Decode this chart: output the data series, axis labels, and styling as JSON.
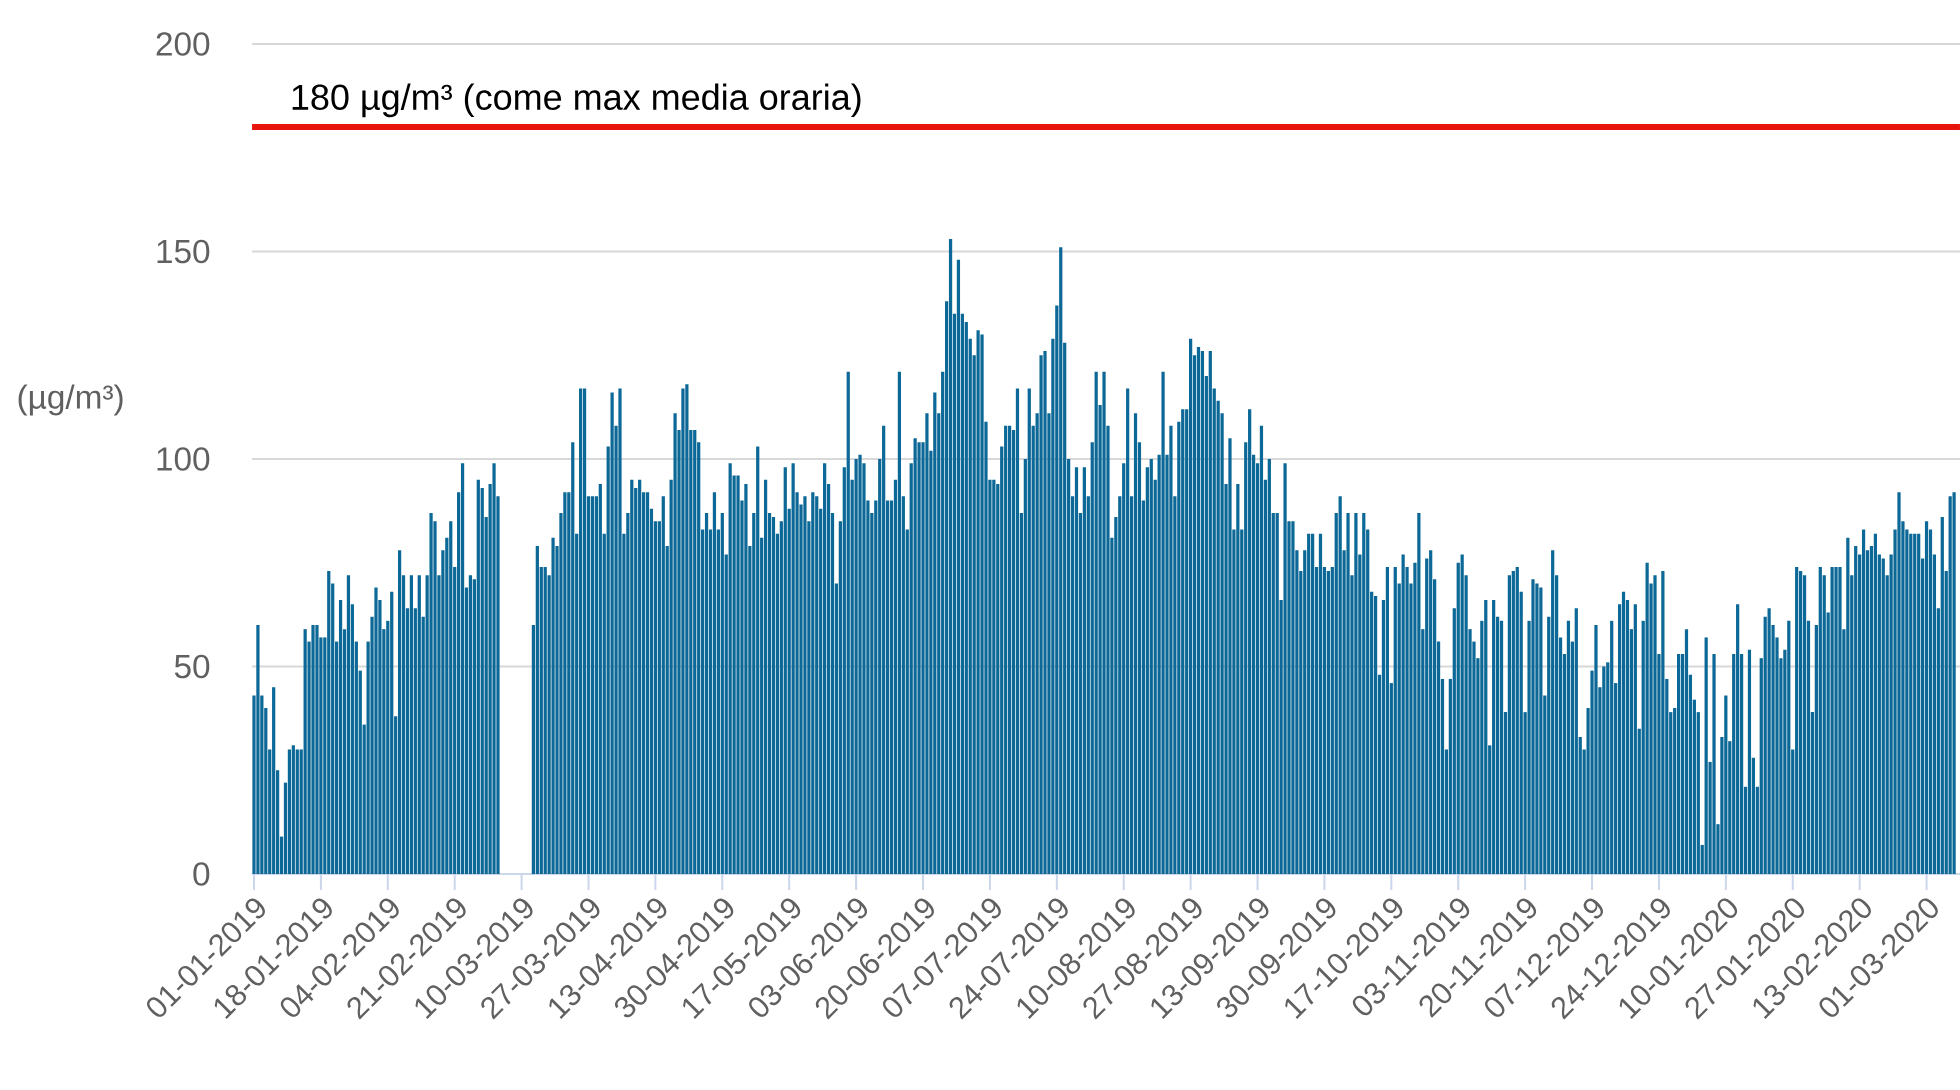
{
  "chart_data": {
    "type": "bar",
    "ylabel": "(µg/m³)",
    "color": "#0c6896",
    "grid": "y",
    "ylim": [
      0,
      200
    ],
    "yticks": [
      0,
      50,
      100,
      150,
      200
    ],
    "xlim": [
      "2018-12-31T12:00",
      "2020-03-09T12:00"
    ],
    "xticks": [
      {
        "value": "2019-01-01",
        "label": "01-01-2019"
      },
      {
        "value": "2019-01-18",
        "label": "18-01-2019"
      },
      {
        "value": "2019-02-04",
        "label": "04-02-2019"
      },
      {
        "value": "2019-02-21",
        "label": "21-02-2019"
      },
      {
        "value": "2019-03-10",
        "label": "10-03-2019"
      },
      {
        "value": "2019-03-27",
        "label": "27-03-2019"
      },
      {
        "value": "2019-04-13",
        "label": "13-04-2019"
      },
      {
        "value": "2019-04-30",
        "label": "30-04-2019"
      },
      {
        "value": "2019-05-17",
        "label": "17-05-2019"
      },
      {
        "value": "2019-06-03",
        "label": "03-06-2019"
      },
      {
        "value": "2019-06-20",
        "label": "20-06-2019"
      },
      {
        "value": "2019-07-07",
        "label": "07-07-2019"
      },
      {
        "value": "2019-07-24",
        "label": "24-07-2019"
      },
      {
        "value": "2019-08-10",
        "label": "10-08-2019"
      },
      {
        "value": "2019-08-27",
        "label": "27-08-2019"
      },
      {
        "value": "2019-09-13",
        "label": "13-09-2019"
      },
      {
        "value": "2019-09-30",
        "label": "30-09-2019"
      },
      {
        "value": "2019-10-17",
        "label": "17-10-2019"
      },
      {
        "value": "2019-11-03",
        "label": "03-11-2019"
      },
      {
        "value": "2019-11-20",
        "label": "20-11-2019"
      },
      {
        "value": "2019-12-07",
        "label": "07-12-2019"
      },
      {
        "value": "2019-12-24",
        "label": "24-12-2019"
      },
      {
        "value": "2020-01-10",
        "label": "10-01-2020"
      },
      {
        "value": "2020-01-27",
        "label": "27-01-2020"
      },
      {
        "value": "2020-02-13",
        "label": "13-02-2020"
      },
      {
        "value": "2020-03-01",
        "label": "01-03-2020"
      }
    ],
    "ref_lines": [
      {
        "axis": "y",
        "value": 180,
        "label": "180 µg/m³ (come max media oraria)",
        "color": "#e8150e"
      }
    ],
    "x": [
      "2019-01-01",
      "2019-01-02",
      "2019-01-03",
      "2019-01-04",
      "2019-01-05",
      "2019-01-06",
      "2019-01-07",
      "2019-01-08",
      "2019-01-09",
      "2019-01-10",
      "2019-01-11",
      "2019-01-12",
      "2019-01-13",
      "2019-01-14",
      "2019-01-15",
      "2019-01-16",
      "2019-01-17",
      "2019-01-18",
      "2019-01-19",
      "2019-01-20",
      "2019-01-21",
      "2019-01-22",
      "2019-01-23",
      "2019-01-24",
      "2019-01-25",
      "2019-01-26",
      "2019-01-27",
      "2019-01-28",
      "2019-01-29",
      "2019-01-30",
      "2019-01-31",
      "2019-02-01",
      "2019-02-02",
      "2019-02-03",
      "2019-02-04",
      "2019-02-05",
      "2019-02-06",
      "2019-02-07",
      "2019-02-08",
      "2019-02-09",
      "2019-02-10",
      "2019-02-11",
      "2019-02-12",
      "2019-02-13",
      "2019-02-14",
      "2019-02-15",
      "2019-02-16",
      "2019-02-17",
      "2019-02-18",
      "2019-02-19",
      "2019-02-20",
      "2019-02-21",
      "2019-02-22",
      "2019-02-23",
      "2019-02-24",
      "2019-02-25",
      "2019-02-26",
      "2019-02-27",
      "2019-02-28",
      "2019-03-01",
      "2019-03-02",
      "2019-03-03",
      "2019-03-04",
      "2019-03-05",
      "2019-03-06",
      "2019-03-07",
      "2019-03-08",
      "2019-03-09",
      "2019-03-10",
      "2019-03-11",
      "2019-03-12",
      "2019-03-13",
      "2019-03-14",
      "2019-03-15",
      "2019-03-16",
      "2019-03-17",
      "2019-03-18",
      "2019-03-19",
      "2019-03-20",
      "2019-03-21",
      "2019-03-22",
      "2019-03-23",
      "2019-03-24",
      "2019-03-25",
      "2019-03-26",
      "2019-03-27",
      "2019-03-28",
      "2019-03-29",
      "2019-03-30",
      "2019-03-31",
      "2019-04-01",
      "2019-04-02",
      "2019-04-03",
      "2019-04-04",
      "2019-04-05",
      "2019-04-06",
      "2019-04-07",
      "2019-04-08",
      "2019-04-09",
      "2019-04-10",
      "2019-04-11",
      "2019-04-12",
      "2019-04-13",
      "2019-04-14",
      "2019-04-15",
      "2019-04-16",
      "2019-04-17",
      "2019-04-18",
      "2019-04-19",
      "2019-04-20",
      "2019-04-21",
      "2019-04-22",
      "2019-04-23",
      "2019-04-24",
      "2019-04-25",
      "2019-04-26",
      "2019-04-27",
      "2019-04-28",
      "2019-04-29",
      "2019-04-30",
      "2019-05-01",
      "2019-05-02",
      "2019-05-03",
      "2019-05-04",
      "2019-05-05",
      "2019-05-06",
      "2019-05-07",
      "2019-05-08",
      "2019-05-09",
      "2019-05-10",
      "2019-05-11",
      "2019-05-12",
      "2019-05-13",
      "2019-05-14",
      "2019-05-15",
      "2019-05-16",
      "2019-05-17",
      "2019-05-18",
      "2019-05-19",
      "2019-05-20",
      "2019-05-21",
      "2019-05-22",
      "2019-05-23",
      "2019-05-24",
      "2019-05-25",
      "2019-05-26",
      "2019-05-27",
      "2019-05-28",
      "2019-05-29",
      "2019-05-30",
      "2019-05-31",
      "2019-06-01",
      "2019-06-02",
      "2019-06-03",
      "2019-06-04",
      "2019-06-05",
      "2019-06-06",
      "2019-06-07",
      "2019-06-08",
      "2019-06-09",
      "2019-06-10",
      "2019-06-11",
      "2019-06-12",
      "2019-06-13",
      "2019-06-14",
      "2019-06-15",
      "2019-06-16",
      "2019-06-17",
      "2019-06-18",
      "2019-06-19",
      "2019-06-20",
      "2019-06-21",
      "2019-06-22",
      "2019-06-23",
      "2019-06-24",
      "2019-06-25",
      "2019-06-26",
      "2019-06-27",
      "2019-06-28",
      "2019-06-29",
      "2019-06-30",
      "2019-07-01",
      "2019-07-02",
      "2019-07-03",
      "2019-07-04",
      "2019-07-05",
      "2019-07-06",
      "2019-07-07",
      "2019-07-08",
      "2019-07-09",
      "2019-07-10",
      "2019-07-11",
      "2019-07-12",
      "2019-07-13",
      "2019-07-14",
      "2019-07-15",
      "2019-07-16",
      "2019-07-17",
      "2019-07-18",
      "2019-07-19",
      "2019-07-20",
      "2019-07-21",
      "2019-07-22",
      "2019-07-23",
      "2019-07-24",
      "2019-07-25",
      "2019-07-26",
      "2019-07-27",
      "2019-07-28",
      "2019-07-29",
      "2019-07-30",
      "2019-07-31",
      "2019-08-01",
      "2019-08-02",
      "2019-08-03",
      "2019-08-04",
      "2019-08-05",
      "2019-08-06",
      "2019-08-07",
      "2019-08-08",
      "2019-08-09",
      "2019-08-10",
      "2019-08-11",
      "2019-08-12",
      "2019-08-13",
      "2019-08-14",
      "2019-08-15",
      "2019-08-16",
      "2019-08-17",
      "2019-08-18",
      "2019-08-19",
      "2019-08-20",
      "2019-08-21",
      "2019-08-22",
      "2019-08-23",
      "2019-08-24",
      "2019-08-25",
      "2019-08-26",
      "2019-08-27",
      "2019-08-28",
      "2019-08-29",
      "2019-08-30",
      "2019-08-31",
      "2019-09-01",
      "2019-09-02",
      "2019-09-03",
      "2019-09-04",
      "2019-09-05",
      "2019-09-06",
      "2019-09-07",
      "2019-09-08",
      "2019-09-09",
      "2019-09-10",
      "2019-09-11",
      "2019-09-12",
      "2019-09-13",
      "2019-09-14",
      "2019-09-15",
      "2019-09-16",
      "2019-09-17",
      "2019-09-18",
      "2019-09-19",
      "2019-09-20",
      "2019-09-21",
      "2019-09-22",
      "2019-09-23",
      "2019-09-24",
      "2019-09-25",
      "2019-09-26",
      "2019-09-27",
      "2019-09-28",
      "2019-09-29",
      "2019-09-30",
      "2019-10-01",
      "2019-10-02",
      "2019-10-03",
      "2019-10-04",
      "2019-10-05",
      "2019-10-06",
      "2019-10-07",
      "2019-10-08",
      "2019-10-09",
      "2019-10-10",
      "2019-10-11",
      "2019-10-12",
      "2019-10-13",
      "2019-10-14",
      "2019-10-15",
      "2019-10-16",
      "2019-10-17",
      "2019-10-18",
      "2019-10-19",
      "2019-10-20",
      "2019-10-21",
      "2019-10-22",
      "2019-10-23",
      "2019-10-24",
      "2019-10-25",
      "2019-10-26",
      "2019-10-27",
      "2019-10-28",
      "2019-10-29",
      "2019-10-30",
      "2019-10-31",
      "2019-11-01",
      "2019-11-02",
      "2019-11-03",
      "2019-11-04",
      "2019-11-05",
      "2019-11-06",
      "2019-11-07",
      "2019-11-08",
      "2019-11-09",
      "2019-11-10",
      "2019-11-11",
      "2019-11-12",
      "2019-11-13",
      "2019-11-14",
      "2019-11-15",
      "2019-11-16",
      "2019-11-17",
      "2019-11-18",
      "2019-11-19",
      "2019-11-20",
      "2019-11-21",
      "2019-11-22",
      "2019-11-23",
      "2019-11-24",
      "2019-11-25",
      "2019-11-26",
      "2019-11-27",
      "2019-11-28",
      "2019-11-29",
      "2019-11-30",
      "2019-12-01",
      "2019-12-02",
      "2019-12-03",
      "2019-12-04",
      "2019-12-05",
      "2019-12-06",
      "2019-12-07",
      "2019-12-08",
      "2019-12-09",
      "2019-12-10",
      "2019-12-11",
      "2019-12-12",
      "2019-12-13",
      "2019-12-14",
      "2019-12-15",
      "2019-12-16",
      "2019-12-17",
      "2019-12-18",
      "2019-12-19",
      "2019-12-20",
      "2019-12-21",
      "2019-12-22",
      "2019-12-23",
      "2019-12-24",
      "2019-12-25",
      "2019-12-26",
      "2019-12-27",
      "2019-12-28",
      "2019-12-29",
      "2019-12-30",
      "2019-12-31",
      "2020-01-01",
      "2020-01-02",
      "2020-01-03",
      "2020-01-04",
      "2020-01-05",
      "2020-01-06",
      "2020-01-07",
      "2020-01-08",
      "2020-01-09",
      "2020-01-10",
      "2020-01-11",
      "2020-01-12",
      "2020-01-13",
      "2020-01-14",
      "2020-01-15",
      "2020-01-16",
      "2020-01-17",
      "2020-01-18",
      "2020-01-19",
      "2020-01-20",
      "2020-01-21",
      "2020-01-22",
      "2020-01-23",
      "2020-01-24",
      "2020-01-25",
      "2020-01-26",
      "2020-01-27",
      "2020-01-28",
      "2020-01-29",
      "2020-01-30",
      "2020-01-31",
      "2020-02-01",
      "2020-02-02",
      "2020-02-03",
      "2020-02-04",
      "2020-02-05",
      "2020-02-06",
      "2020-02-07",
      "2020-02-08",
      "2020-02-09",
      "2020-02-10",
      "2020-02-11",
      "2020-02-12",
      "2020-02-13",
      "2020-02-14",
      "2020-02-15",
      "2020-02-16",
      "2020-02-17",
      "2020-02-18",
      "2020-02-19",
      "2020-02-20",
      "2020-02-21",
      "2020-02-22",
      "2020-02-23",
      "2020-02-24",
      "2020-02-25",
      "2020-02-26",
      "2020-02-27",
      "2020-02-28",
      "2020-02-29",
      "2020-03-01",
      "2020-03-02",
      "2020-03-03",
      "2020-03-04",
      "2020-03-05",
      "2020-03-06",
      "2020-03-07",
      "2020-03-08"
    ],
    "values": [
      43,
      60,
      43,
      40,
      30,
      45,
      25,
      9,
      22,
      30,
      31,
      30,
      30,
      59,
      56,
      60,
      60,
      57,
      57,
      73,
      70,
      56,
      66,
      59,
      72,
      65,
      56,
      49,
      36,
      56,
      62,
      69,
      66,
      59,
      61,
      68,
      38,
      78,
      72,
      64,
      72,
      64,
      72,
      62,
      72,
      87,
      85,
      72,
      78,
      81,
      85,
      74,
      92,
      99,
      69,
      72,
      71,
      95,
      93,
      86,
      94,
      99,
      91,
      null,
      null,
      null,
      null,
      null,
      null,
      null,
      null,
      60,
      79,
      74,
      74,
      72,
      81,
      79,
      87,
      92,
      92,
      104,
      82,
      117,
      117,
      91,
      91,
      91,
      94,
      82,
      103,
      116,
      108,
      117,
      82,
      87,
      95,
      93,
      95,
      92,
      92,
      88,
      85,
      85,
      91,
      79,
      95,
      111,
      107,
      117,
      118,
      107,
      107,
      104,
      83,
      87,
      83,
      92,
      83,
      87,
      77,
      99,
      96,
      96,
      90,
      94,
      79,
      87,
      103,
      81,
      95,
      87,
      86,
      82,
      85,
      98,
      88,
      99,
      92,
      89,
      91,
      85,
      92,
      91,
      88,
      99,
      94,
      87,
      70,
      85,
      98,
      121,
      95,
      100,
      101,
      99,
      90,
      87,
      90,
      100,
      108,
      90,
      90,
      95,
      121,
      91,
      83,
      99,
      105,
      104,
      104,
      111,
      102,
      116,
      111,
      121,
      138,
      153,
      135,
      148,
      135,
      133,
      129,
      125,
      131,
      130,
      109,
      95,
      95,
      94,
      103,
      108,
      108,
      107,
      117,
      87,
      100,
      117,
      108,
      111,
      125,
      126,
      111,
      129,
      137,
      151,
      128,
      100,
      91,
      98,
      87,
      98,
      91,
      104,
      121,
      113,
      121,
      108,
      81,
      86,
      91,
      99,
      117,
      91,
      111,
      104,
      90,
      98,
      100,
      95,
      101,
      121,
      101,
      108,
      91,
      109,
      112,
      112,
      129,
      125,
      127,
      126,
      120,
      126,
      117,
      114,
      111,
      94,
      105,
      83,
      94,
      83,
      104,
      112,
      101,
      99,
      108,
      95,
      100,
      87,
      87,
      66,
      99,
      85,
      85,
      78,
      73,
      78,
      82,
      82,
      74,
      82,
      74,
      73,
      74,
      87,
      91,
      78,
      87,
      72,
      87,
      77,
      87,
      83,
      68,
      67,
      48,
      66,
      74,
      46,
      74,
      70,
      77,
      74,
      70,
      75,
      87,
      59,
      76,
      78,
      71,
      56,
      47,
      30,
      47,
      64,
      75,
      77,
      72,
      59,
      56,
      52,
      61,
      66,
      31,
      66,
      62,
      61,
      39,
      72,
      73,
      74,
      68,
      39,
      61,
      71,
      70,
      69,
      43,
      62,
      78,
      72,
      57,
      53,
      61,
      56,
      64,
      33,
      30,
      40,
      49,
      60,
      45,
      50,
      51,
      61,
      46,
      65,
      68,
      66,
      59,
      65,
      35,
      61,
      75,
      70,
      72,
      53,
      73,
      47,
      39,
      40,
      53,
      53,
      59,
      48,
      42,
      39,
      7,
      57,
      27,
      53,
      12,
      33,
      43,
      32,
      53,
      65,
      53,
      21,
      54,
      28,
      21,
      52,
      62,
      64,
      60,
      57,
      52,
      54,
      61,
      30,
      74,
      73,
      72,
      61,
      39,
      60,
      74,
      72,
      63,
      74,
      74,
      74,
      59,
      81,
      72,
      79,
      77,
      83,
      78,
      79,
      82,
      77,
      76,
      72,
      77,
      83,
      92,
      85,
      83,
      82,
      82,
      82,
      76,
      85,
      83,
      77,
      64,
      86,
      73,
      91,
      92
    ]
  }
}
